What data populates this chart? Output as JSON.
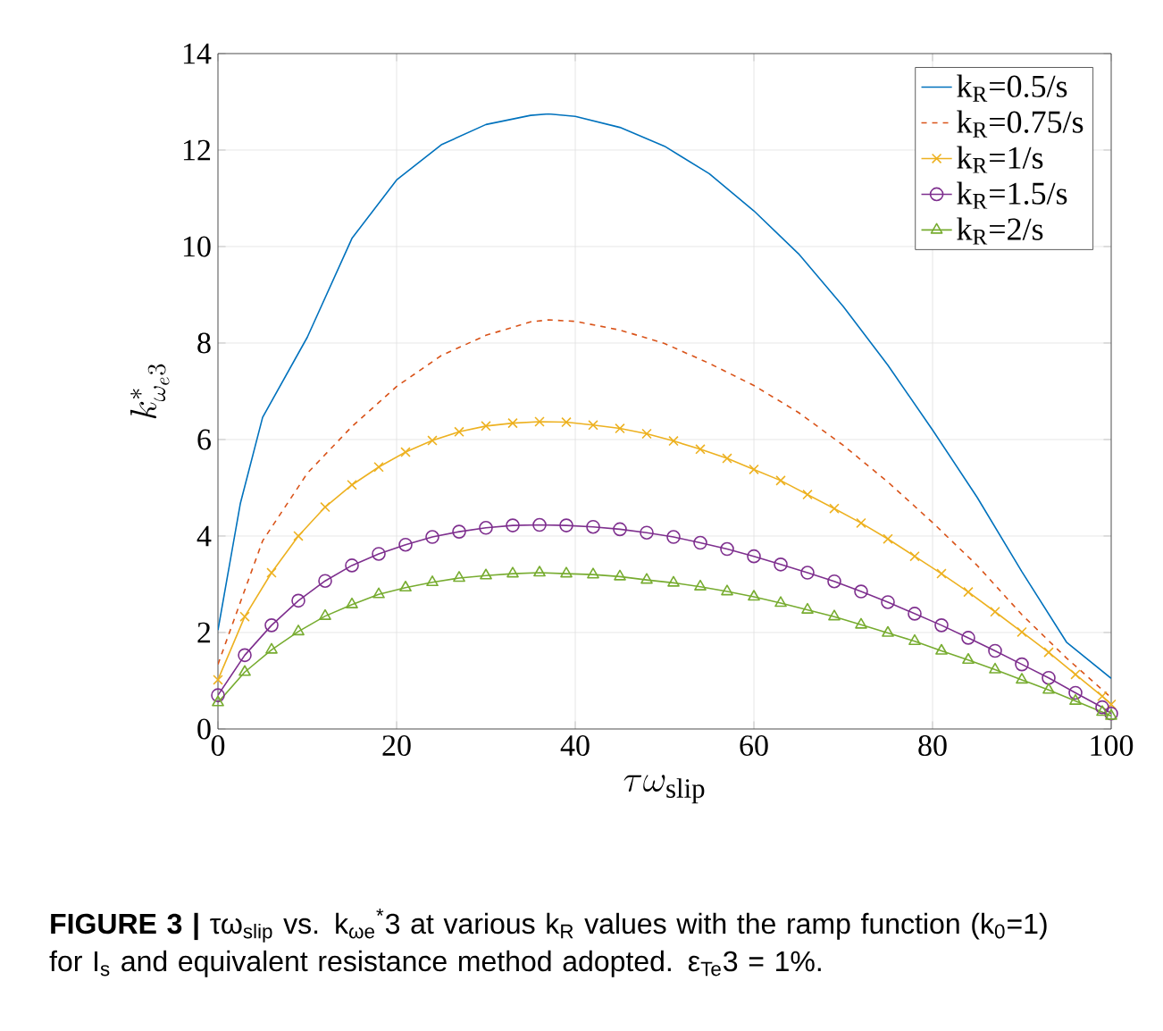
{
  "chart_data": {
    "type": "line",
    "xlabel": "\\tau\\omega_{\\rm slip}",
    "ylabel": "k^{*}_{\\omega_e 3}",
    "annotations": [
      "**FIGURE 3 |** τω$_{slip}$ vs. k$_{ωe}$$^{*}$3 at various k$_{R}$ values with the ramp function (k$_{0}$=1) for I$_{s}$ and equivalent resistance method adopted. ε$_{Te}$3 = 1%."
    ],
    "xlim": [
      0,
      100
    ],
    "ylim": [
      0,
      14
    ],
    "xticks": [
      0,
      20,
      40,
      60,
      80,
      100
    ],
    "yticks": [
      0,
      2,
      4,
      6,
      8,
      10,
      12,
      14
    ],
    "grid": true,
    "legend": "top right",
    "series": [
      {
        "name": "k$_{R}$=0.5/s",
        "color": "#0072bd",
        "marker": "none",
        "line_style": "solid",
        "x": [
          0,
          2.5,
          5,
          10,
          15,
          20,
          25,
          30,
          35,
          37,
          40,
          45,
          50,
          55,
          60,
          65,
          70,
          75,
          80,
          85,
          90,
          95,
          100
        ],
        "values": [
          2.05,
          4.67,
          6.46,
          8.12,
          10.17,
          11.38,
          12.11,
          12.53,
          12.72,
          12.75,
          12.7,
          12.47,
          12.08,
          11.51,
          10.74,
          9.85,
          8.76,
          7.54,
          6.2,
          4.8,
          3.26,
          1.8,
          1.05
        ]
      },
      {
        "name": "k$_{R}$=0.75/s",
        "color": "#d95319",
        "marker": "none",
        "line_style": "dashed",
        "x": [
          0,
          3,
          5,
          10,
          15,
          20,
          25,
          30,
          35,
          37,
          40,
          45,
          50,
          55,
          60,
          65,
          70,
          75,
          80,
          85,
          90,
          95,
          100
        ],
        "values": [
          1.34,
          2.88,
          3.9,
          5.3,
          6.27,
          7.1,
          7.74,
          8.16,
          8.44,
          8.48,
          8.45,
          8.27,
          7.99,
          7.58,
          7.12,
          6.56,
          5.88,
          5.12,
          4.28,
          3.39,
          2.37,
          1.47,
          0.65
        ]
      },
      {
        "name": "k$_{R}$=1/s",
        "color": "#edb120",
        "marker": "cross",
        "line_style": "solid",
        "x": [
          0,
          3,
          6,
          9,
          12,
          15,
          18,
          21,
          24,
          27,
          30,
          33,
          36,
          39,
          42,
          45,
          48,
          51,
          54,
          57,
          60,
          63,
          66,
          69,
          72,
          75,
          78,
          81,
          84,
          87,
          90,
          93,
          96,
          99,
          100
        ],
        "values": [
          1.02,
          2.33,
          3.24,
          4.0,
          4.6,
          5.06,
          5.43,
          5.74,
          5.98,
          6.16,
          6.28,
          6.34,
          6.37,
          6.36,
          6.3,
          6.23,
          6.12,
          5.97,
          5.8,
          5.61,
          5.38,
          5.15,
          4.86,
          4.57,
          4.27,
          3.94,
          3.58,
          3.22,
          2.84,
          2.43,
          2.01,
          1.59,
          1.13,
          0.68,
          0.51
        ]
      },
      {
        "name": "k$_{R}$=1.5/s",
        "color": "#7e2f8e",
        "marker": "circle",
        "line_style": "solid",
        "x": [
          0,
          3,
          6,
          9,
          12,
          15,
          18,
          21,
          24,
          27,
          30,
          33,
          36,
          39,
          42,
          45,
          48,
          51,
          54,
          57,
          60,
          63,
          66,
          69,
          72,
          75,
          78,
          81,
          84,
          87,
          90,
          93,
          96,
          99,
          100
        ],
        "values": [
          0.7,
          1.53,
          2.15,
          2.66,
          3.07,
          3.39,
          3.63,
          3.82,
          3.98,
          4.09,
          4.17,
          4.22,
          4.23,
          4.22,
          4.19,
          4.14,
          4.07,
          3.98,
          3.86,
          3.73,
          3.58,
          3.41,
          3.24,
          3.06,
          2.85,
          2.63,
          2.39,
          2.15,
          1.89,
          1.62,
          1.34,
          1.06,
          0.75,
          0.45,
          0.32
        ]
      },
      {
        "name": "k$_{R}$=2/s",
        "color": "#77ac30",
        "marker": "triangle",
        "line_style": "solid",
        "x": [
          0,
          3,
          6,
          9,
          12,
          15,
          18,
          21,
          24,
          27,
          30,
          33,
          36,
          39,
          42,
          45,
          48,
          51,
          54,
          57,
          60,
          63,
          66,
          69,
          72,
          75,
          78,
          81,
          84,
          87,
          90,
          93,
          96,
          99,
          100
        ],
        "values": [
          0.55,
          1.18,
          1.64,
          2.02,
          2.34,
          2.58,
          2.79,
          2.93,
          3.04,
          3.13,
          3.18,
          3.22,
          3.24,
          3.22,
          3.2,
          3.16,
          3.09,
          3.03,
          2.95,
          2.85,
          2.74,
          2.61,
          2.47,
          2.33,
          2.16,
          1.99,
          1.82,
          1.62,
          1.43,
          1.23,
          1.02,
          0.81,
          0.58,
          0.35,
          0.27
        ]
      }
    ]
  }
}
